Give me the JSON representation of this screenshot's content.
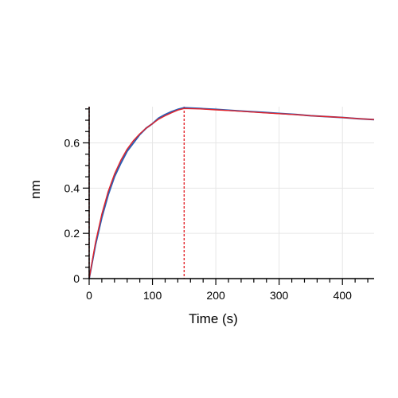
{
  "chart_data": {
    "type": "line",
    "title": "",
    "xlabel": "Time (s)",
    "ylabel": "nm",
    "xlim": [
      0,
      450
    ],
    "ylim": [
      0,
      0.76
    ],
    "x_ticks": [
      0,
      100,
      200,
      300,
      400
    ],
    "y_ticks": [
      0,
      0.2,
      0.4,
      0.6
    ],
    "x_tick_labels": [
      "0",
      "100",
      "200",
      "300",
      "400"
    ],
    "y_tick_labels": [
      "0",
      "0.2",
      "0.4",
      "0.6"
    ],
    "grid": true,
    "legend": "none",
    "vertical_markers": [
      0,
      150
    ],
    "colors": {
      "measured": "#2b5fb4",
      "fit": "#e3232a",
      "grid": "#e6e6e6",
      "axis": "#000000"
    },
    "series": [
      {
        "style": "measured",
        "x": [
          0,
          10,
          20,
          30,
          40,
          50,
          60,
          70,
          80,
          90,
          100,
          110,
          120,
          130,
          140,
          150,
          175,
          200,
          225,
          250,
          275,
          300,
          325,
          350,
          375,
          400,
          425,
          450
        ],
        "y": [
          0,
          0.15,
          0.27,
          0.37,
          0.45,
          0.51,
          0.563,
          0.6,
          0.637,
          0.665,
          0.685,
          0.71,
          0.725,
          0.738,
          0.748,
          0.755,
          0.752,
          0.748,
          0.743,
          0.739,
          0.735,
          0.73,
          0.726,
          0.72,
          0.716,
          0.712,
          0.707,
          0.703
        ]
      },
      {
        "style": "fit",
        "x": [
          0,
          10,
          20,
          30,
          40,
          50,
          60,
          70,
          80,
          90,
          100,
          110,
          120,
          130,
          140,
          150,
          175,
          200,
          225,
          250,
          275,
          300,
          325,
          350,
          375,
          400,
          425,
          450
        ],
        "y": [
          0,
          0.16,
          0.285,
          0.385,
          0.462,
          0.523,
          0.572,
          0.61,
          0.64,
          0.665,
          0.685,
          0.705,
          0.72,
          0.733,
          0.745,
          0.752,
          0.75,
          0.746,
          0.742,
          0.738,
          0.733,
          0.729,
          0.725,
          0.72,
          0.716,
          0.712,
          0.707,
          0.703
        ]
      }
    ]
  }
}
